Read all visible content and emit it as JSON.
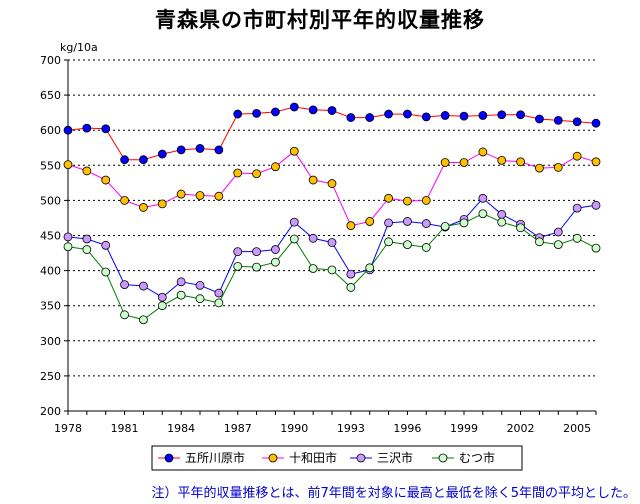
{
  "page": {
    "title": "青森県の市町村別平年的収量推移",
    "note": "注）平年的収量推移とは、前7年間を対象に最高と最低を除く5年間の平均とした。"
  },
  "chart_data": {
    "type": "line",
    "title": "青森県の市町村別平年的収量推移",
    "ylabel": "kg/10a",
    "xlabel": "",
    "ylim": [
      200,
      700
    ],
    "ytick_step": 50,
    "xlim": [
      1978,
      2006
    ],
    "x_tick_labels": [
      "1978",
      "1981",
      "1984",
      "1987",
      "1990",
      "1993",
      "1996",
      "1999",
      "2002",
      "2005"
    ],
    "y_tick_labels": [
      "200",
      "250",
      "300",
      "350",
      "400",
      "450",
      "500",
      "550",
      "600",
      "650",
      "700"
    ],
    "grid": "horizontal dotted",
    "legend_position": "bottom",
    "x": [
      1978,
      1979,
      1980,
      1981,
      1982,
      1983,
      1984,
      1985,
      1986,
      1987,
      1988,
      1989,
      1990,
      1991,
      1992,
      1993,
      1994,
      1995,
      1996,
      1997,
      1998,
      1999,
      2000,
      2001,
      2002,
      2003,
      2004,
      2005,
      2006
    ],
    "series": [
      {
        "name": "五所川原市",
        "line_color": "#ff0000",
        "marker_color": "#0000ff",
        "values": [
          600,
          603,
          602,
          558,
          558,
          566,
          572,
          574,
          572,
          623,
          624,
          626,
          633,
          629,
          628,
          618,
          618,
          623,
          623,
          619,
          621,
          620,
          621,
          622,
          622,
          616,
          614,
          612,
          610
        ]
      },
      {
        "name": "十和田市",
        "line_color": "#ff00ff",
        "marker_color": "#ffc000",
        "values": [
          551,
          542,
          529,
          500,
          490,
          495,
          509,
          507,
          506,
          539,
          538,
          548,
          570,
          529,
          524,
          464,
          470,
          503,
          499,
          500,
          554,
          554,
          569,
          557,
          555,
          546,
          547,
          563,
          555
        ]
      },
      {
        "name": "三沢市",
        "line_color": "#0000ff",
        "marker_color": "#cc99ff",
        "values": [
          448,
          445,
          436,
          380,
          378,
          362,
          384,
          379,
          368,
          427,
          427,
          430,
          469,
          446,
          440,
          395,
          401,
          468,
          470,
          467,
          462,
          473,
          503,
          480,
          466,
          447,
          455,
          489,
          493
        ]
      },
      {
        "name": "むつ市",
        "line_color": "#008000",
        "marker_color": "#ccffcc",
        "values": [
          434,
          430,
          398,
          337,
          330,
          350,
          365,
          360,
          354,
          406,
          405,
          412,
          445,
          403,
          401,
          376,
          404,
          441,
          437,
          433,
          463,
          468,
          481,
          469,
          461,
          441,
          437,
          446,
          432
        ]
      }
    ]
  }
}
